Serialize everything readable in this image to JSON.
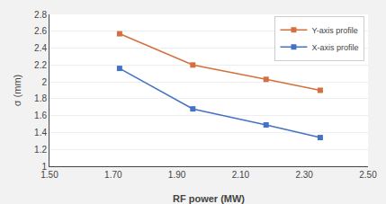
{
  "chart_data": {
    "type": "line",
    "xlabel": "RF power (MW)",
    "ylabel": "σ (mm)",
    "x": [
      1.72,
      1.95,
      2.18,
      2.35
    ],
    "series": [
      {
        "name": "Y-axis profile",
        "color": "#D47040",
        "marker": "square",
        "values": [
          2.57,
          2.2,
          2.03,
          1.9
        ]
      },
      {
        "name": "X-axis profile",
        "color": "#4472C4",
        "marker": "square",
        "values": [
          2.16,
          1.68,
          1.49,
          1.34
        ]
      }
    ],
    "xlim": [
      1.5,
      2.5
    ],
    "ylim": [
      1.0,
      2.8
    ],
    "xticks": [
      {
        "value": 1.5,
        "label": "1.50"
      },
      {
        "value": 1.7,
        "label": "1.70"
      },
      {
        "value": 1.9,
        "label": "1.90"
      },
      {
        "value": 2.1,
        "label": "2.10"
      },
      {
        "value": 2.3,
        "label": "2.30"
      },
      {
        "value": 2.5,
        "label": "2.50"
      }
    ],
    "yticks": [
      1,
      1.2,
      1.4,
      1.6,
      1.8,
      2,
      2.2,
      2.4,
      2.6,
      2.8
    ],
    "grid": "y",
    "legend": "upper right"
  }
}
